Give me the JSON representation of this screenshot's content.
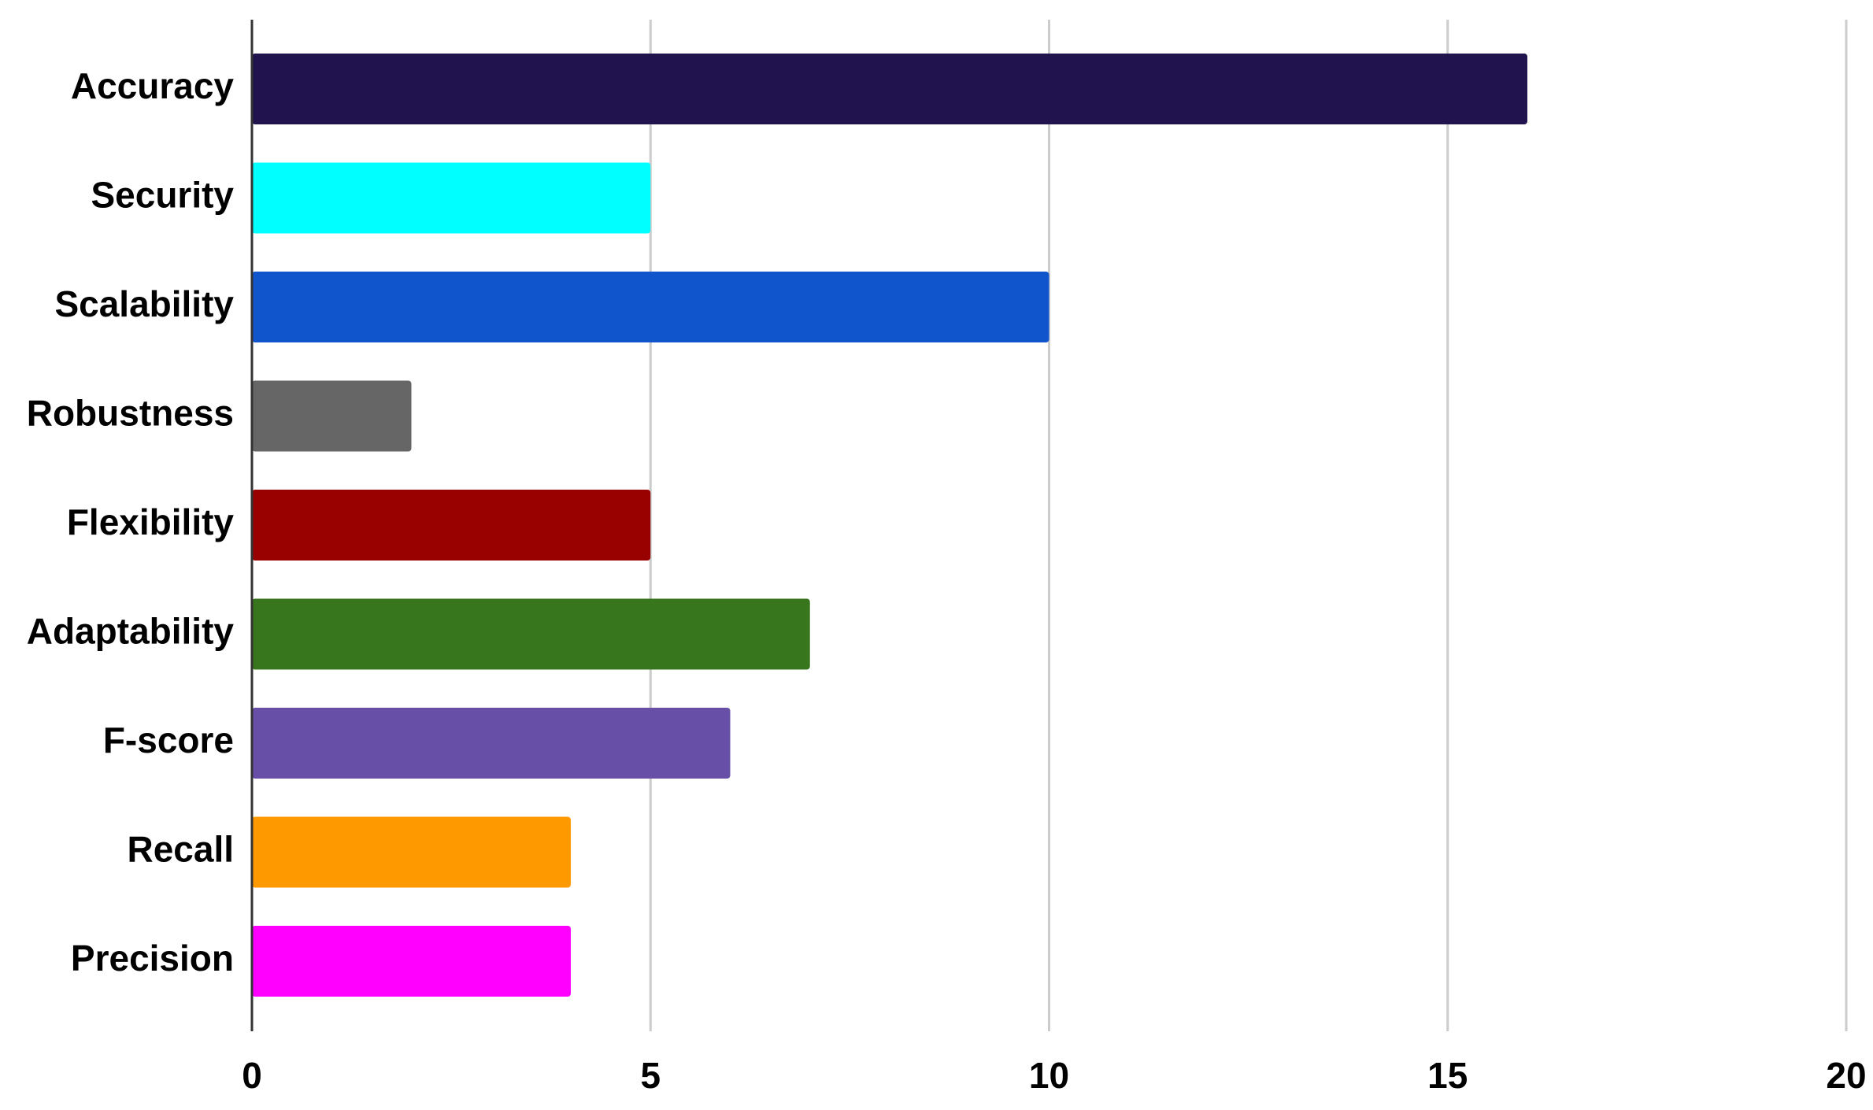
{
  "chart_data": {
    "type": "bar",
    "orientation": "horizontal",
    "title": "",
    "xlabel": "",
    "ylabel": "",
    "categories": [
      "Accuracy",
      "Security",
      "Scalability",
      "Robustness",
      "Flexibility",
      "Adaptability",
      "F-score",
      "Recall",
      "Precision"
    ],
    "values": [
      16,
      5,
      10,
      2,
      5,
      7,
      6,
      4,
      4
    ],
    "colors": [
      "#21134d",
      "#00ffff",
      "#1155cc",
      "#666666",
      "#990000",
      "#38761d",
      "#674ea7",
      "#ff9900",
      "#ff00ff"
    ],
    "xlim": [
      0,
      20
    ],
    "xticks": [
      0,
      5,
      10,
      15,
      20
    ],
    "xtick_labels": [
      "0",
      "5",
      "10",
      "15",
      "20"
    ],
    "grid": true,
    "legend": "none"
  }
}
